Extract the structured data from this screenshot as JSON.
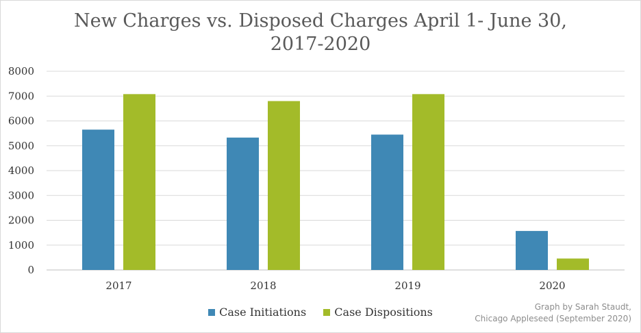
{
  "chart_data": {
    "type": "bar",
    "title_lines": [
      "New Charges vs. Disposed Charges April 1- June 30,",
      "2017-2020"
    ],
    "categories": [
      "2017",
      "2018",
      "2019",
      "2020"
    ],
    "series": [
      {
        "name": "Case Initiations",
        "color": "#3f88b5",
        "values": [
          5650,
          5330,
          5450,
          1570
        ]
      },
      {
        "name": "Case Dispositions",
        "color": "#a3bb29",
        "values": [
          7080,
          6800,
          7080,
          460
        ]
      }
    ],
    "ylim": [
      0,
      8000
    ],
    "yticks": [
      "0",
      "1000",
      "2000",
      "3000",
      "4000",
      "5000",
      "6000",
      "7000",
      "8000"
    ],
    "xlabel": "",
    "ylabel": "",
    "grid": true,
    "legend_position": "bottom",
    "credit_lines": [
      "Graph by Sarah Staudt,",
      "Chicago Appleseed (September 2020)"
    ]
  }
}
